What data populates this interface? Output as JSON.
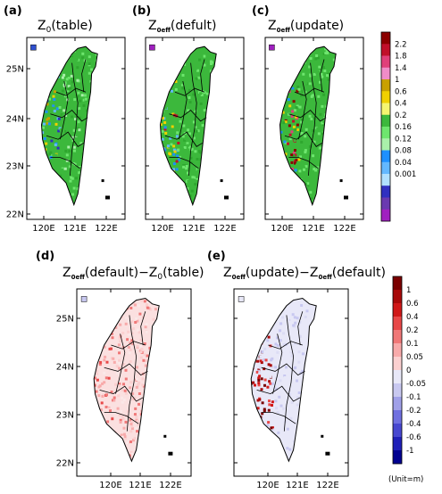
{
  "panels": {
    "a": {
      "label": "(a)",
      "title_main": "Z",
      "title_sub": "0",
      "title_rest": "(table)"
    },
    "b": {
      "label": "(b)",
      "title_main": "Z",
      "title_sub": "0eff",
      "title_rest": "(defult)"
    },
    "c": {
      "label": "(c)",
      "title_main": "Z",
      "title_sub": "0eff",
      "title_rest": "(update)"
    },
    "d": {
      "label": "(d)",
      "title_main": "Z",
      "title_sub": "0eff",
      "title_mid": "(default)−Z",
      "title_sub2": "0",
      "title_rest": "(table)"
    },
    "e": {
      "label": "(e)",
      "title_main": "Z",
      "title_sub": "0eff",
      "title_mid": "(update)−Z",
      "title_sub2": "0eff",
      "title_rest": "(default)"
    }
  },
  "axes": {
    "lat_labels": [
      "25N",
      "24N",
      "23N",
      "22N"
    ],
    "lon_labels": [
      "120E",
      "121E",
      "122E"
    ]
  },
  "colorbar_top": {
    "labels": [
      "2.2",
      "1.8",
      "1.4",
      "1",
      "0.6",
      "0.4",
      "0.2",
      "0.16",
      "0.12",
      "0.08",
      "0.04",
      "0.001"
    ],
    "colors": [
      "#8b0000",
      "#c0102a",
      "#e0407a",
      "#f08cc8",
      "#c8a000",
      "#f0d000",
      "#f5f570",
      "#3cb83c",
      "#6ee66e",
      "#aaf0aa",
      "#1e90ff",
      "#63b8ff",
      "#b0e0ff",
      "#3030c0",
      "#6a3ab0",
      "#a020c0"
    ]
  },
  "colorbar_bottom": {
    "labels": [
      "1",
      "0.6",
      "0.4",
      "0.2",
      "0.1",
      "0.05",
      "0",
      "-0.05",
      "-0.1",
      "-0.2",
      "-0.4",
      "-0.6",
      "-1"
    ],
    "colors": [
      "#7a0000",
      "#a80a0a",
      "#d01818",
      "#e84848",
      "#f07878",
      "#f8aaaa",
      "#fbd0d0",
      "#e8e8f8",
      "#c8c8f0",
      "#a0a0e8",
      "#7070e0",
      "#4848d0",
      "#2020b8",
      "#000090"
    ],
    "unit": "(Unit=m)"
  }
}
